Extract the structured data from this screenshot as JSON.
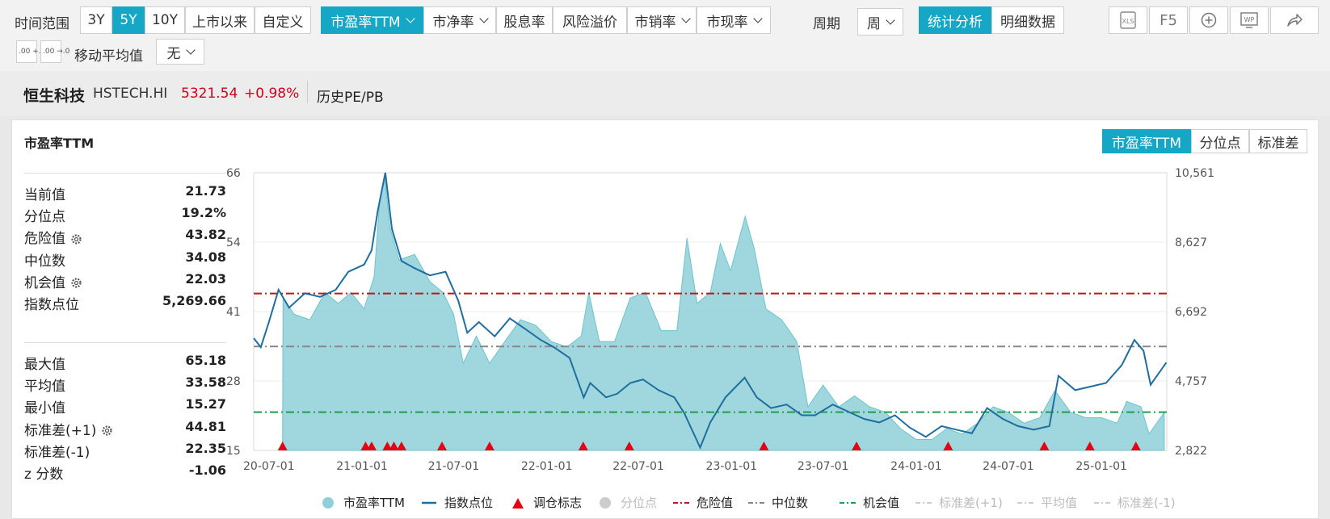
{
  "toolbar": {
    "time_range_label": "时间范围",
    "time_ranges": [
      "3Y",
      "5Y",
      "10Y",
      "上市以来",
      "自定义"
    ],
    "active_time_range": "5Y",
    "metrics": [
      {
        "label": "市盈率TTM",
        "dropdown": true,
        "active": true
      },
      {
        "label": "市净率",
        "dropdown": true
      },
      {
        "label": "股息率",
        "dropdown": false
      },
      {
        "label": "风险溢价",
        "dropdown": false
      },
      {
        "label": "市销率",
        "dropdown": true
      },
      {
        "label": "市现率",
        "dropdown": true
      }
    ],
    "period_label": "周期",
    "period_value": "周",
    "view_tabs": [
      "统计分析",
      "明细数据"
    ],
    "active_view": "统计分析",
    "right_icons": [
      "xls-export-icon",
      "f5-icon",
      "add-circle-icon",
      "wp-icon",
      "share-icon"
    ],
    "f5_text": "F5",
    "xls_text": "XLS",
    "wp_text": "WP",
    "decimal_increase_text": ".00 +.0",
    "decimal_decrease_text": ".00 →.0",
    "moving_avg_label": "移动平均值",
    "moving_avg_value": "无"
  },
  "title": {
    "name": "恒生科技",
    "code": "HSTECH.HI",
    "price": "5321.54",
    "change": "+0.98%",
    "section": "历史PE/PB",
    "price_color": "#d0021b"
  },
  "panel": {
    "title": "市盈率TTM",
    "tabs": [
      "市盈率TTM",
      "分位点",
      "标准差"
    ],
    "active_tab": "市盈率TTM"
  },
  "stats_top": [
    {
      "label": "当前值",
      "value": "21.73",
      "gear": false
    },
    {
      "label": "分位点",
      "value": "19.2%",
      "gear": false
    },
    {
      "label": "危险值",
      "value": "43.82",
      "gear": true
    },
    {
      "label": "中位数",
      "value": "34.08",
      "gear": false
    },
    {
      "label": "机会值",
      "value": "22.03",
      "gear": true
    },
    {
      "label": "指数点位",
      "value": "5,269.66",
      "gear": false
    }
  ],
  "stats_bottom": [
    {
      "label": "最大值",
      "value": "65.18",
      "gear": false
    },
    {
      "label": "平均值",
      "value": "33.58",
      "gear": false
    },
    {
      "label": "最小值",
      "value": "15.27",
      "gear": false
    },
    {
      "label": "标准差(+1)",
      "value": "44.81",
      "gear": true
    },
    {
      "label": "标准差(-1)",
      "value": "22.35",
      "gear": false
    },
    {
      "label": "z 分数",
      "value": "-1.06",
      "gear": false
    }
  ],
  "chart_data": {
    "type": "area",
    "x_tick_labels": [
      "20-07-01",
      "21-01-01",
      "21-07-01",
      "22-01-01",
      "22-07-01",
      "23-01-01",
      "23-07-01",
      "24-01-01",
      "24-07-01",
      "25-01-01"
    ],
    "x_range": [
      "2020-06-01",
      "2025-05-10"
    ],
    "y_left_ticks": [
      "66",
      "54",
      "41",
      "28",
      "15"
    ],
    "y_left_range": [
      15,
      66
    ],
    "y_right_ticks": [
      "10,561",
      "8,627",
      "6,692",
      "4,757",
      "2,822"
    ],
    "y_right_range": [
      2822,
      10561
    ],
    "danger_value": 43.82,
    "median_value": 34.08,
    "opportunity_value": 22.03,
    "pe_series": {
      "name": "市盈率TTM",
      "color": "#8fd0d8",
      "points": [
        [
          "2020-07-28",
          15.3
        ],
        [
          "2020-07-29",
          43
        ],
        [
          "2020-08-20",
          40
        ],
        [
          "2020-09-20",
          39
        ],
        [
          "2020-10-20",
          44
        ],
        [
          "2020-11-15",
          42
        ],
        [
          "2020-12-10",
          44
        ],
        [
          "2021-01-05",
          41
        ],
        [
          "2021-01-25",
          47
        ],
        [
          "2021-02-05",
          61
        ],
        [
          "2021-02-15",
          65
        ],
        [
          "2021-02-25",
          56
        ],
        [
          "2021-03-15",
          50
        ],
        [
          "2021-04-15",
          51
        ],
        [
          "2021-05-15",
          46
        ],
        [
          "2021-06-10",
          44
        ],
        [
          "2021-07-01",
          40
        ],
        [
          "2021-07-20",
          31
        ],
        [
          "2021-08-15",
          36
        ],
        [
          "2021-09-10",
          31
        ],
        [
          "2021-10-10",
          35
        ],
        [
          "2021-11-10",
          39
        ],
        [
          "2021-12-10",
          38
        ],
        [
          "2022-01-10",
          35
        ],
        [
          "2022-02-10",
          34
        ],
        [
          "2022-03-10",
          36
        ],
        [
          "2022-03-25",
          44
        ],
        [
          "2022-04-15",
          35
        ],
        [
          "2022-05-15",
          35
        ],
        [
          "2022-06-15",
          43
        ],
        [
          "2022-07-15",
          44
        ],
        [
          "2022-08-15",
          37
        ],
        [
          "2022-09-15",
          37
        ],
        [
          "2022-10-05",
          54
        ],
        [
          "2022-10-25",
          42
        ],
        [
          "2022-11-20",
          44
        ],
        [
          "2022-12-10",
          53
        ],
        [
          "2022-12-30",
          48
        ],
        [
          "2023-01-28",
          58
        ],
        [
          "2023-02-15",
          52
        ],
        [
          "2023-03-10",
          41
        ],
        [
          "2023-04-10",
          39
        ],
        [
          "2023-05-10",
          35
        ],
        [
          "2023-06-01",
          23
        ],
        [
          "2023-07-01",
          27
        ],
        [
          "2023-08-01",
          23
        ],
        [
          "2023-09-01",
          25
        ],
        [
          "2023-10-01",
          23
        ],
        [
          "2023-11-01",
          22
        ],
        [
          "2023-12-01",
          19
        ],
        [
          "2024-01-01",
          17
        ],
        [
          "2024-02-01",
          17
        ],
        [
          "2024-03-01",
          19
        ],
        [
          "2024-04-01",
          18
        ],
        [
          "2024-05-01",
          20
        ],
        [
          "2024-06-01",
          23
        ],
        [
          "2024-07-01",
          22
        ],
        [
          "2024-08-01",
          20
        ],
        [
          "2024-09-01",
          21
        ],
        [
          "2024-10-01",
          26
        ],
        [
          "2024-11-01",
          22
        ],
        [
          "2024-12-01",
          21
        ],
        [
          "2025-01-01",
          21
        ],
        [
          "2025-02-01",
          20
        ],
        [
          "2025-02-20",
          24
        ],
        [
          "2025-03-20",
          23
        ],
        [
          "2025-04-05",
          18
        ],
        [
          "2025-05-05",
          22
        ]
      ]
    },
    "index_series": {
      "name": "指数点位",
      "color": "#1f6e9e",
      "points": [
        [
          "2020-06-01",
          5950
        ],
        [
          "2020-06-15",
          5700
        ],
        [
          "2020-07-01",
          6400
        ],
        [
          "2020-07-20",
          7300
        ],
        [
          "2020-08-10",
          6800
        ],
        [
          "2020-09-10",
          7200
        ],
        [
          "2020-10-10",
          7100
        ],
        [
          "2020-11-10",
          7300
        ],
        [
          "2020-12-05",
          7800
        ],
        [
          "2021-01-05",
          8000
        ],
        [
          "2021-01-20",
          8400
        ],
        [
          "2021-02-01",
          9500
        ],
        [
          "2021-02-16",
          10561
        ],
        [
          "2021-03-01",
          9000
        ],
        [
          "2021-03-20",
          8100
        ],
        [
          "2021-04-15",
          7900
        ],
        [
          "2021-05-15",
          7700
        ],
        [
          "2021-06-15",
          7800
        ],
        [
          "2021-07-10",
          7000
        ],
        [
          "2021-07-28",
          6100
        ],
        [
          "2021-08-20",
          6400
        ],
        [
          "2021-09-20",
          6000
        ],
        [
          "2021-10-20",
          6500
        ],
        [
          "2021-11-20",
          6200
        ],
        [
          "2021-12-20",
          5900
        ],
        [
          "2022-01-15",
          5700
        ],
        [
          "2022-02-15",
          5400
        ],
        [
          "2022-03-15",
          4300
        ],
        [
          "2022-03-28",
          4700
        ],
        [
          "2022-04-28",
          4300
        ],
        [
          "2022-05-20",
          4400
        ],
        [
          "2022-06-15",
          4700
        ],
        [
          "2022-07-10",
          4800
        ],
        [
          "2022-08-10",
          4500
        ],
        [
          "2022-09-10",
          4300
        ],
        [
          "2022-09-30",
          3850
        ],
        [
          "2022-10-31",
          2900
        ],
        [
          "2022-11-20",
          3600
        ],
        [
          "2022-12-20",
          4300
        ],
        [
          "2023-01-27",
          4850
        ],
        [
          "2023-02-20",
          4300
        ],
        [
          "2023-03-20",
          4000
        ],
        [
          "2023-04-20",
          4100
        ],
        [
          "2023-05-20",
          3800
        ],
        [
          "2023-06-15",
          3800
        ],
        [
          "2023-07-20",
          4100
        ],
        [
          "2023-08-20",
          3900
        ],
        [
          "2023-09-20",
          3700
        ],
        [
          "2023-10-20",
          3600
        ],
        [
          "2023-11-20",
          3800
        ],
        [
          "2023-12-20",
          3450
        ],
        [
          "2024-01-20",
          3200
        ],
        [
          "2024-02-20",
          3500
        ],
        [
          "2024-03-20",
          3400
        ],
        [
          "2024-04-20",
          3300
        ],
        [
          "2024-05-20",
          4000
        ],
        [
          "2024-06-20",
          3700
        ],
        [
          "2024-07-20",
          3500
        ],
        [
          "2024-08-20",
          3400
        ],
        [
          "2024-09-20",
          3500
        ],
        [
          "2024-10-08",
          4900
        ],
        [
          "2024-11-10",
          4500
        ],
        [
          "2024-12-10",
          4600
        ],
        [
          "2025-01-10",
          4700
        ],
        [
          "2025-02-10",
          5200
        ],
        [
          "2025-03-07",
          5900
        ],
        [
          "2025-03-25",
          5600
        ],
        [
          "2025-04-08",
          4650
        ],
        [
          "2025-05-09",
          5269
        ]
      ]
    },
    "rebalance_dates": [
      "2020-07-28",
      "2021-01-08",
      "2021-01-20",
      "2021-02-20",
      "2021-03-05",
      "2021-03-20",
      "2021-06-08",
      "2021-09-10",
      "2022-03-14",
      "2022-06-13",
      "2023-03-06",
      "2023-09-05",
      "2024-03-04",
      "2024-09-10",
      "2024-12-09",
      "2025-03-10"
    ],
    "legend": [
      {
        "key": "pe",
        "label": "市盈率TTM",
        "color": "#8fd0d8",
        "enabled": true
      },
      {
        "key": "index",
        "label": "指数点位",
        "color": "#1f6e9e",
        "enabled": true
      },
      {
        "key": "rebalance",
        "label": "调仓标志",
        "color": "#e60012",
        "enabled": true
      },
      {
        "key": "percentile",
        "label": "分位点",
        "color": "#cccccc",
        "enabled": false
      },
      {
        "key": "danger",
        "label": "危险值",
        "color": "#c0141b",
        "enabled": true
      },
      {
        "key": "median",
        "label": "中位数",
        "color": "#888888",
        "enabled": true
      },
      {
        "key": "opportunity",
        "label": "机会值",
        "color": "#1e9e4a",
        "enabled": true
      },
      {
        "key": "std_plus",
        "label": "标准差(+1)",
        "color": "#cccccc",
        "enabled": false
      },
      {
        "key": "mean",
        "label": "平均值",
        "color": "#cccccc",
        "enabled": false
      },
      {
        "key": "std_minus",
        "label": "标准差(-1)",
        "color": "#cccccc",
        "enabled": false
      }
    ]
  }
}
